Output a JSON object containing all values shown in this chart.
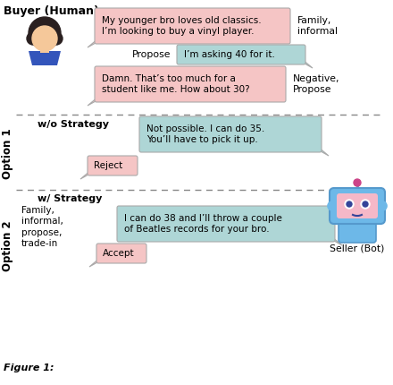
{
  "title": "Buyer (Human)",
  "buyer_bubble1": "My younger bro loves old classics.\nI’m looking to buy a vinyl player.",
  "buyer_bubble2": "Damn. That’s too much for a\nstudent like me. How about 30?",
  "seller_bubble1": "I’m asking 40 for it.",
  "seller_bubble2": "Not possible. I can do 35.\nYou’ll have to pick it up.",
  "seller_bubble3": "I can do 38 and I’ll throw a couple\nof Beatles records for your bro.",
  "reject_label": "Reject",
  "accept_label": "Accept",
  "propose_label": "Propose",
  "option1_label": "w/o Strategy",
  "option2_label": "w/ Strategy",
  "option1_side": "Option 1",
  "option2_side": "Option 2",
  "tag1": "Family,\ninformal",
  "tag2": "Negative,\nPropose",
  "tag3": "Family,\ninformal,\npropose,\ntrade-in",
  "seller_bot_label": "Seller (Bot)",
  "buyer_bubble_color": "#f5c5c5",
  "seller_bubble_color": "#aed6d6",
  "reject_bubble_color": "#f5c5c5",
  "accept_bubble_color": "#f5c5c5",
  "bubble_edge_color": "#999999",
  "dashed_line_color": "#888888",
  "background_color": "#ffffff",
  "buyer_hair_color": "#2a2020",
  "buyer_skin_color": "#f5c89a",
  "buyer_body_color": "#3355bb",
  "bot_body_color": "#6db8e8",
  "bot_face_color": "#f5b8c8",
  "bot_accent_color": "#5599cc",
  "bot_eye_color": "#334499",
  "bot_antenna_color": "#cc4488"
}
